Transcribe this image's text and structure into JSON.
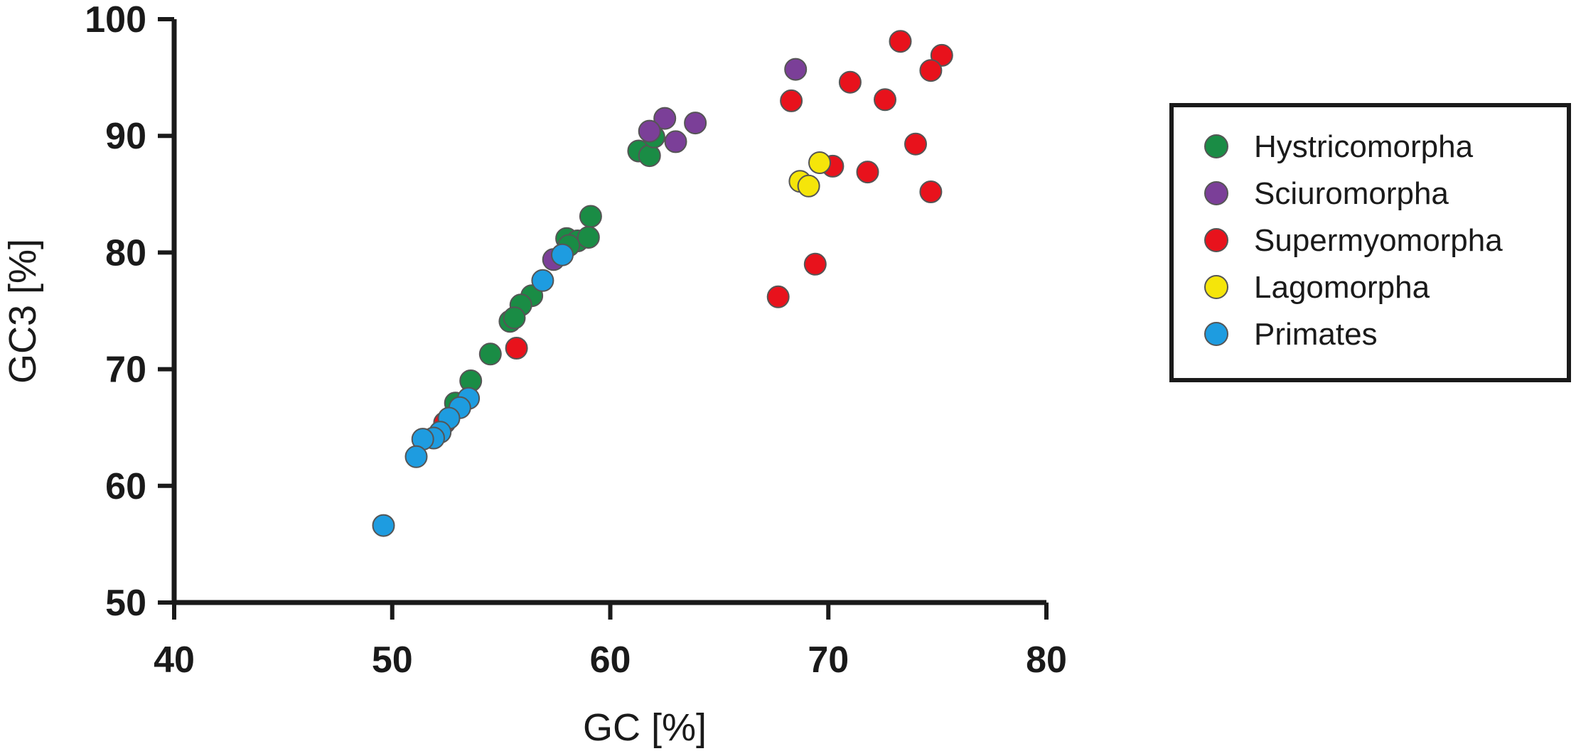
{
  "chart_data": {
    "type": "scatter",
    "xlabel": "GC [%]",
    "ylabel": "GC3 [%]",
    "xlim": [
      40,
      80
    ],
    "ylim": [
      50,
      100
    ],
    "xticks": [
      "40",
      "50",
      "60",
      "70",
      "80"
    ],
    "yticks": [
      "50",
      "60",
      "70",
      "80",
      "90",
      "100"
    ],
    "grid": false,
    "legend_position": "right",
    "series": [
      {
        "name": "Hystricomorpha",
        "color": "#1a8c45",
        "points": [
          [
            61.3,
            88.7
          ],
          [
            61.8,
            88.3
          ],
          [
            62.0,
            89.9
          ],
          [
            59.1,
            83.1
          ],
          [
            58.0,
            81.2
          ],
          [
            58.5,
            81.0
          ],
          [
            59.0,
            81.3
          ],
          [
            58.1,
            80.6
          ],
          [
            56.4,
            76.3
          ],
          [
            55.9,
            75.5
          ],
          [
            55.4,
            74.1
          ],
          [
            55.6,
            74.4
          ],
          [
            54.5,
            71.3
          ],
          [
            53.6,
            69.0
          ],
          [
            52.9,
            67.1
          ]
        ]
      },
      {
        "name": "Sciuromorpha",
        "color": "#7b3f98",
        "points": [
          [
            68.5,
            95.7
          ],
          [
            62.5,
            91.5
          ],
          [
            61.8,
            90.4
          ],
          [
            63.9,
            91.1
          ],
          [
            63.0,
            89.5
          ],
          [
            57.4,
            79.4
          ]
        ]
      },
      {
        "name": "Supermyomorpha",
        "color": "#e8121c",
        "points": [
          [
            73.3,
            98.1
          ],
          [
            75.2,
            96.9
          ],
          [
            74.7,
            95.6
          ],
          [
            71.0,
            94.6
          ],
          [
            68.3,
            93.0
          ],
          [
            72.6,
            93.1
          ],
          [
            74.0,
            89.3
          ],
          [
            70.2,
            87.4
          ],
          [
            71.8,
            86.9
          ],
          [
            74.7,
            85.2
          ],
          [
            69.4,
            79.0
          ],
          [
            67.7,
            76.2
          ],
          [
            55.7,
            71.8
          ],
          [
            52.4,
            65.4
          ]
        ]
      },
      {
        "name": "Lagomorpha",
        "color": "#f5e50a",
        "points": [
          [
            69.6,
            87.7
          ],
          [
            68.7,
            86.1
          ],
          [
            69.1,
            85.7
          ]
        ]
      },
      {
        "name": "Primates",
        "color": "#1e9ce0",
        "points": [
          [
            57.8,
            79.8
          ],
          [
            56.9,
            77.6
          ],
          [
            53.5,
            67.5
          ],
          [
            53.1,
            66.7
          ],
          [
            52.6,
            65.8
          ],
          [
            52.2,
            64.6
          ],
          [
            51.9,
            64.1
          ],
          [
            51.4,
            64.0
          ],
          [
            51.1,
            62.5
          ],
          [
            49.6,
            56.6
          ]
        ]
      }
    ]
  }
}
